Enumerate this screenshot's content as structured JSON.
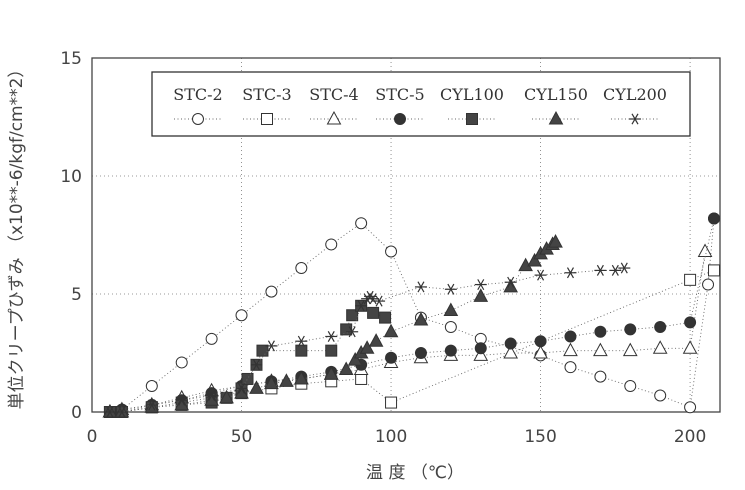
{
  "chart_data": {
    "type": "scatter",
    "xlabel": "温 度 （℃）",
    "ylabel": "単位クリープひずみ （x10**-6/kgf/cm**2）",
    "xlim": [
      0,
      210
    ],
    "ylim": [
      0,
      15
    ],
    "x_ticks": [
      0,
      50,
      100,
      150,
      200
    ],
    "y_ticks": [
      0,
      5,
      10,
      15
    ],
    "grid": true,
    "legend_position": "top",
    "series": [
      {
        "name": "STC-2",
        "marker": "circle-open",
        "line": "dotted",
        "x": [
          6,
          10,
          20,
          30,
          40,
          50,
          60,
          70,
          80,
          90,
          100,
          110,
          120,
          130,
          150,
          160,
          170,
          180,
          190,
          200,
          206,
          208
        ],
        "y": [
          0.0,
          0.1,
          1.1,
          2.1,
          3.1,
          4.1,
          5.1,
          6.1,
          7.1,
          8.0,
          6.8,
          4.0,
          3.6,
          3.1,
          2.4,
          1.9,
          1.5,
          1.1,
          0.7,
          0.2,
          5.4,
          8.2
        ]
      },
      {
        "name": "STC-3",
        "marker": "square-open",
        "line": "dotted",
        "x": [
          6,
          10,
          20,
          30,
          40,
          50,
          60,
          70,
          80,
          90,
          100,
          200,
          208
        ],
        "y": [
          0.0,
          0.0,
          0.2,
          0.4,
          0.6,
          0.8,
          1.0,
          1.2,
          1.3,
          1.4,
          0.4,
          5.6,
          6.0
        ]
      },
      {
        "name": "STC-4",
        "marker": "triangle-open",
        "line": "dotted",
        "x": [
          6,
          10,
          20,
          30,
          40,
          50,
          60,
          70,
          80,
          90,
          100,
          110,
          120,
          130,
          140,
          150,
          160,
          170,
          180,
          190,
          200,
          205
        ],
        "y": [
          0.0,
          0.1,
          0.3,
          0.6,
          0.9,
          1.1,
          1.3,
          1.4,
          1.6,
          1.8,
          2.1,
          2.3,
          2.4,
          2.4,
          2.5,
          2.5,
          2.6,
          2.6,
          2.6,
          2.7,
          2.7,
          6.8
        ]
      },
      {
        "name": "STC-5",
        "marker": "circle-filled",
        "line": "dotted",
        "x": [
          6,
          10,
          20,
          30,
          40,
          50,
          60,
          70,
          80,
          90,
          100,
          110,
          120,
          130,
          140,
          150,
          160,
          170,
          180,
          190,
          200,
          208
        ],
        "y": [
          0.0,
          0.1,
          0.3,
          0.5,
          0.8,
          1.1,
          1.3,
          1.5,
          1.7,
          2.0,
          2.3,
          2.5,
          2.6,
          2.7,
          2.9,
          3.0,
          3.2,
          3.4,
          3.5,
          3.6,
          3.8,
          8.2
        ]
      },
      {
        "name": "CYL100",
        "marker": "square-filled",
        "line": "dotted",
        "x": [
          6,
          10,
          20,
          30,
          40,
          45,
          50,
          52,
          55,
          57,
          70,
          80,
          85,
          87,
          90,
          94,
          98
        ],
        "y": [
          0.0,
          0.0,
          0.2,
          0.3,
          0.4,
          0.6,
          1.0,
          1.4,
          2.0,
          2.6,
          2.6,
          2.6,
          3.5,
          4.1,
          4.5,
          4.2,
          4.0
        ]
      },
      {
        "name": "CYL150",
        "marker": "triangle-filled",
        "line": "dotted",
        "x": [
          6,
          10,
          20,
          30,
          40,
          45,
          50,
          55,
          60,
          65,
          70,
          80,
          85,
          88,
          90,
          92,
          95,
          100,
          110,
          120,
          130,
          140,
          145,
          148,
          150,
          152,
          154,
          155
        ],
        "y": [
          0.0,
          0.0,
          0.2,
          0.3,
          0.5,
          0.6,
          0.8,
          1.0,
          1.2,
          1.3,
          1.4,
          1.6,
          1.8,
          2.2,
          2.5,
          2.7,
          3.0,
          3.4,
          3.9,
          4.3,
          4.9,
          5.3,
          6.2,
          6.4,
          6.7,
          6.9,
          7.1,
          7.2
        ]
      },
      {
        "name": "CYL200",
        "marker": "asterisk",
        "line": "dotted",
        "x": [
          6,
          10,
          20,
          30,
          40,
          50,
          55,
          60,
          70,
          80,
          87,
          90,
          92,
          93,
          94,
          96,
          110,
          120,
          130,
          140,
          150,
          160,
          170,
          175,
          178
        ],
        "y": [
          0.0,
          0.0,
          0.3,
          0.5,
          0.7,
          1.0,
          2.0,
          2.8,
          3.0,
          3.2,
          3.4,
          4.5,
          4.8,
          4.9,
          4.8,
          4.7,
          5.3,
          5.2,
          5.4,
          5.5,
          5.8,
          5.9,
          6.0,
          6.0,
          6.1
        ]
      }
    ]
  }
}
